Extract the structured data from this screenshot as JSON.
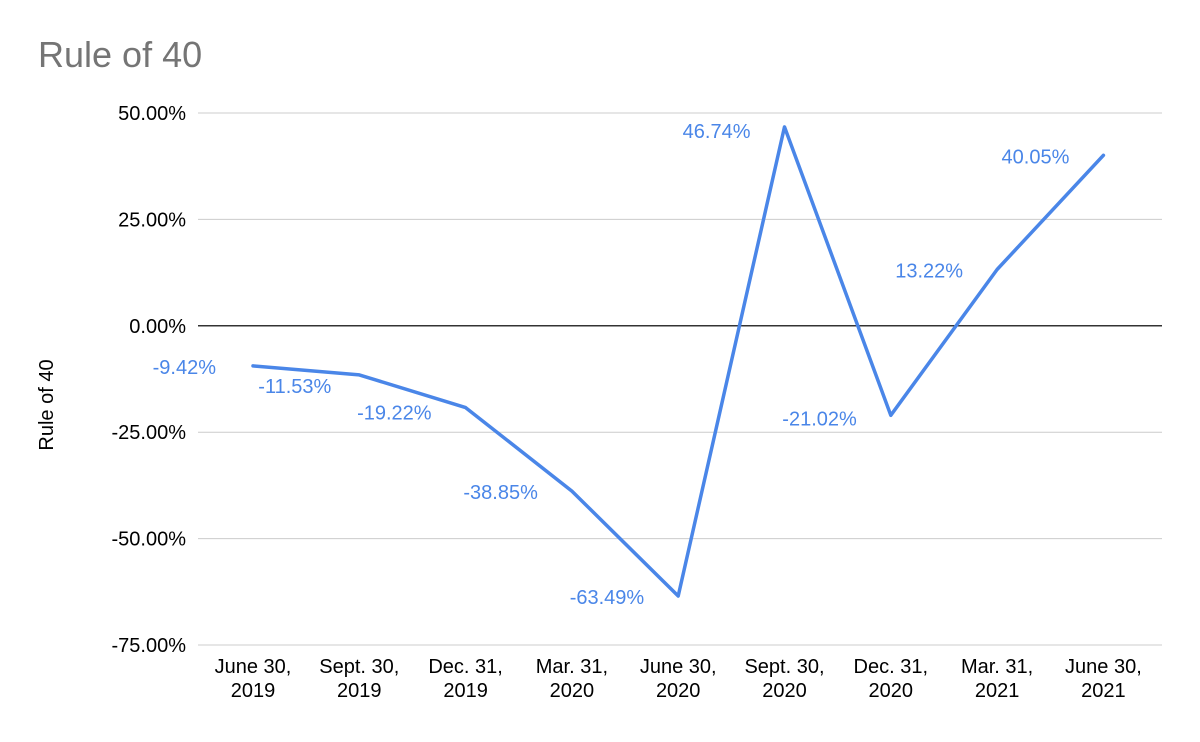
{
  "chart_data": {
    "type": "line",
    "title": "Rule of 40",
    "xlabel": "",
    "ylabel": "Rule of 40",
    "categories": [
      [
        "June 30,",
        "2019"
      ],
      [
        "Sept. 30,",
        "2019"
      ],
      [
        "Dec. 31,",
        "2019"
      ],
      [
        "Mar. 31,",
        "2020"
      ],
      [
        "June 30,",
        "2020"
      ],
      [
        "Sept. 30,",
        "2020"
      ],
      [
        "Dec. 31,",
        "2020"
      ],
      [
        "Mar. 31,",
        "2021"
      ],
      [
        "June 30,",
        "2021"
      ]
    ],
    "series": [
      {
        "values": [
          -9.42,
          -11.53,
          -19.22,
          -38.85,
          -63.49,
          46.74,
          -21.02,
          13.22,
          40.05
        ],
        "labels": [
          "-9.42%",
          "-11.53%",
          "-19.22%",
          "-38.85%",
          "-63.49%",
          "46.74%",
          "-21.02%",
          "13.22%",
          "40.05%"
        ],
        "color": "#4a86e8"
      }
    ],
    "ylim": [
      -75,
      50
    ],
    "yticks": [
      50,
      25,
      0,
      -25,
      -50,
      -75
    ],
    "ytick_labels": [
      "50.00%",
      "25.00%",
      "0.00%",
      "-25.00%",
      "-50.00%",
      "-75.00%"
    ],
    "grid": true,
    "legend": "none",
    "colors": {
      "line": "#4a86e8",
      "grid": "#cccccc",
      "zero_line": "#333333",
      "title": "#757575"
    }
  }
}
